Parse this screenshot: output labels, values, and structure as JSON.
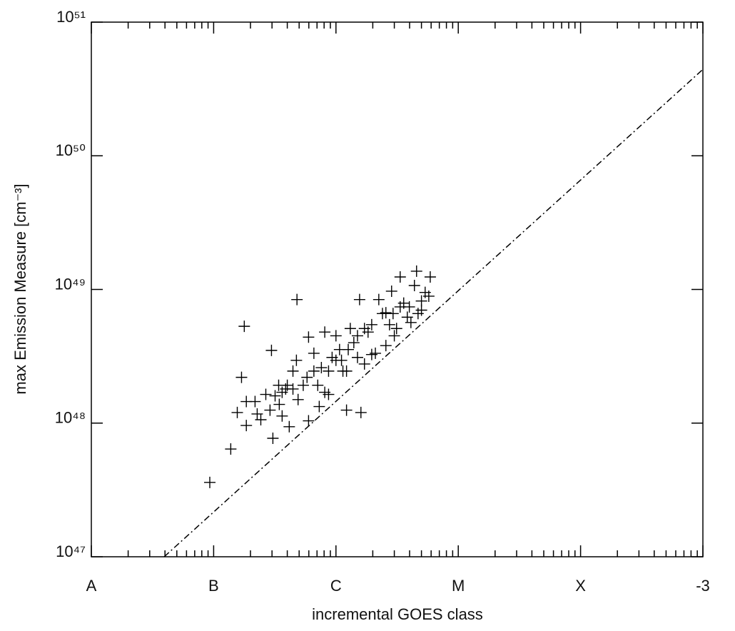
{
  "chart_data": {
    "type": "scatter",
    "xlabel": "incremental GOES class",
    "ylabel": "max Emission Measure [cm⁻³]",
    "xscale": "log",
    "yscale": "log",
    "xlim": [
      1e-08,
      0.001
    ],
    "ylim": [
      1e+47,
      1e+51
    ],
    "xticks": [
      {
        "value": 1e-08,
        "label": "A"
      },
      {
        "value": 1e-07,
        "label": "B"
      },
      {
        "value": 1e-06,
        "label": "C"
      },
      {
        "value": 1e-05,
        "label": "M"
      },
      {
        "value": 0.0001,
        "label": "X"
      },
      {
        "value": 0.001,
        "label": "-3"
      }
    ],
    "yticks": [
      {
        "value": 1e+47,
        "label": "10⁴⁷"
      },
      {
        "value": 1e+48,
        "label": "10⁴⁸"
      },
      {
        "value": 1e+49,
        "label": "10⁴⁹"
      },
      {
        "value": 1e+50,
        "label": "10⁵⁰"
      },
      {
        "value": 1e+51,
        "label": "10⁵¹"
      }
    ],
    "minor_xticks": true,
    "series": [
      {
        "kind": "scatter",
        "marker": "+",
        "color": "#000000",
        "x": [
          9.3e-08,
          1.38e-07,
          1.78e-07,
          1.69e-07,
          2.97e-07,
          4.8e-07,
          3.05e-07,
          1.85e-07,
          1.56e-07,
          1.85e-07,
          2.18e-07,
          2.43e-07,
          2.67e-07,
          3.18e-07,
          3.44e-07,
          3.63e-07,
          4.15e-07,
          3.88e-07,
          4.45e-07,
          4.75e-07,
          5.8e-07,
          5.97e-07,
          5.97e-07,
          7.1e-07,
          7.6e-07,
          8.1e-07,
          7.3e-07,
          8.7e-07,
          9.3e-07,
          1e-06,
          1.07e-06,
          1.14e-06,
          1.22e-06,
          1.22e-06,
          1.31e-06,
          1.5e-06,
          1.56e-06,
          1.6e-06,
          1.5e-06,
          1.71e-06,
          1.96e-06,
          1.96e-06,
          2.24e-06,
          2.4e-06,
          2.56e-06,
          2.74e-06,
          2.85e-06,
          2.93e-06,
          3.35e-06,
          3.58e-06,
          3.83e-06,
          4.1e-06,
          4.38e-06,
          4.56e-06,
          5e-06,
          5.36e-06,
          5.74e-06,
          5.9e-06,
          4.69e-06,
          3.35e-06,
          2.56e-06,
          1.83e-06,
          1.4e-06,
          1.11e-06,
          8.7e-07,
          6.6e-07,
          5.4e-07,
          4.9e-07,
          4e-07,
          3.4e-07,
          2.89e-07,
          2.27e-07,
          8.1e-07,
          1e-06,
          1.26e-06,
          1.71e-06,
          2.1e-06,
          3e-06,
          3.98e-06,
          6.6e-07,
          4.45e-07,
          3.63e-07,
          3.13e-06,
          5e-06
        ],
        "values": [
          3.6e+47,
          6.4e+47,
          5.3e+48,
          2.2e+48,
          3.5e+48,
          8.4e+48,
          7.7e+47,
          9.6e+47,
          1.2e+48,
          1.45e+48,
          1.45e+48,
          1.06e+48,
          1.64e+48,
          1.6e+48,
          1.38e+48,
          1.13e+48,
          9.4e+47,
          1.8e+48,
          2.45e+48,
          2.95e+48,
          2.2e+48,
          1.04e+48,
          4.4e+48,
          1.92e+48,
          2.6e+48,
          4.8e+48,
          1.33e+48,
          1.64e+48,
          3.1e+48,
          4.5e+48,
          3.55e+48,
          2.45e+48,
          2.45e+48,
          1.25e+48,
          5.1e+48,
          4.5e+48,
          8.4e+48,
          1.2e+48,
          3.1e+48,
          5.1e+48,
          5.45e+48,
          3.26e+48,
          8.4e+48,
          6.6e+48,
          3.8e+48,
          5.45e+48,
          9.7e+48,
          6.6e+48,
          1.24e+49,
          7.9e+48,
          6.2e+48,
          5.66e+48,
          1.07e+49,
          1.37e+49,
          8.2e+48,
          9.5e+48,
          8.9e+48,
          1.24e+49,
          6.6e+48,
          7.4e+48,
          6.7e+48,
          4.8e+48,
          4e+48,
          2.95e+48,
          2.45e+48,
          2.45e+48,
          1.92e+48,
          1.5e+48,
          1.92e+48,
          1.92e+48,
          1.25e+48,
          1.17e+48,
          1.7e+48,
          2.95e+48,
          3.55e+48,
          2.77e+48,
          3.33e+48,
          4.5e+48,
          7.4e+48,
          3.33e+48,
          1.8e+48,
          1.7e+48,
          5.1e+48,
          7e+48
        ]
      },
      {
        "kind": "line",
        "linestyle": "dashdot",
        "color": "#000000",
        "x": [
          3.94e-08,
          0.001
        ],
        "values": [
          1e+47,
          4.43e+50
        ]
      }
    ]
  }
}
